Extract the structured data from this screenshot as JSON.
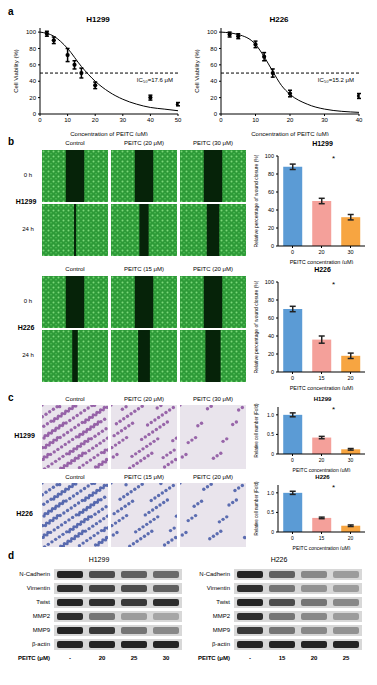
{
  "panel_labels": [
    "a",
    "b",
    "c",
    "d"
  ],
  "chart_data": [
    {
      "type": "scatter",
      "title": "H1299",
      "x_label": "Concentration of PEITC (μM)",
      "y_label": "Cell Viability (%)",
      "annotation": "IC₅₀=17.6 μM",
      "x": [
        2.5,
        5,
        10,
        12.5,
        15,
        20,
        40,
        50
      ],
      "values": [
        98,
        90,
        72,
        60,
        50,
        35,
        20,
        12
      ],
      "errors": [
        3,
        4,
        8,
        5,
        6,
        4,
        3,
        2
      ],
      "fit": {
        "type": "line",
        "x": [
          0,
          5,
          10,
          15,
          20,
          25,
          30,
          35,
          40,
          45,
          50
        ],
        "values": [
          100,
          95,
          80,
          58,
          40,
          27,
          18,
          12,
          8,
          6,
          4
        ]
      },
      "threshold": 50,
      "xlim": [
        0,
        50
      ],
      "xticks": [
        0,
        10,
        20,
        30,
        40,
        50
      ],
      "ylim": [
        0,
        105
      ],
      "yticks": [
        0,
        20,
        40,
        60,
        80,
        100
      ],
      "color": "#000000",
      "marker": "circle"
    },
    {
      "type": "scatter",
      "title": "H226",
      "x_label": "Concentration of PEITC (μM)",
      "y_label": "Cell Viability (%)",
      "annotation": "IC₅₀=15.2 μM",
      "x": [
        2.5,
        5,
        10,
        12.5,
        15,
        20,
        40
      ],
      "values": [
        97,
        95,
        85,
        70,
        50,
        25,
        22
      ],
      "errors": [
        3,
        3,
        4,
        5,
        5,
        4,
        3
      ],
      "fit": {
        "type": "line",
        "x": [
          0,
          5,
          10,
          12.5,
          15,
          17.5,
          20,
          25,
          30,
          40
        ],
        "values": [
          100,
          97,
          85,
          70,
          52,
          35,
          24,
          12,
          6,
          2
        ]
      },
      "threshold": 50,
      "xlim": [
        0,
        40
      ],
      "xticks": [
        0,
        10,
        20,
        30,
        40
      ],
      "ylim": [
        0,
        105
      ],
      "yticks": [
        0,
        20,
        40,
        60,
        80,
        100
      ],
      "color": "#000000",
      "marker": "circle"
    },
    {
      "type": "bar",
      "title": "H1299",
      "x_label": "PEITC concentration (μM)",
      "y_label": "Relative percentage of wound closure (%)",
      "annotation": "*",
      "categories": [
        "0",
        "20",
        "30"
      ],
      "values": [
        88,
        50,
        32
      ],
      "errors": [
        3,
        3,
        3
      ],
      "colors": [
        "#5b9bd5",
        "#f4a09a",
        "#f7a541"
      ],
      "ylim": [
        0,
        100
      ],
      "yticks": [
        0,
        20,
        40,
        60,
        80,
        100
      ]
    },
    {
      "type": "bar",
      "title": "H226",
      "x_label": "PEITC concentration (μM)",
      "y_label": "Relative percentage of wound closure (%)",
      "annotation": "*",
      "categories": [
        "0",
        "15",
        "20"
      ],
      "values": [
        70,
        36,
        18
      ],
      "errors": [
        3,
        4,
        3
      ],
      "colors": [
        "#5b9bd5",
        "#f4a09a",
        "#f7a541"
      ],
      "ylim": [
        0,
        100
      ],
      "yticks": [
        0,
        20,
        40,
        60,
        80,
        100
      ]
    },
    {
      "type": "bar",
      "title": "H1299",
      "x_label": "PEITC concentration (μM)",
      "y_label": "Relative cell number (Fold)",
      "annotation": "*",
      "categories": [
        "0",
        "20",
        "30"
      ],
      "values": [
        1.0,
        0.42,
        0.12
      ],
      "errors": [
        0.05,
        0.03,
        0.02
      ],
      "colors": [
        "#5b9bd5",
        "#f4a09a",
        "#f7a541"
      ],
      "ylim": [
        0,
        1.2
      ],
      "yticks": [
        0,
        0.5,
        {
          "value": 1,
          "label": "1.0"
        }
      ]
    },
    {
      "type": "bar",
      "title": "H226",
      "x_label": "PEITC concentration (μM)",
      "y_label": "Relative cell number (Fold)",
      "annotation": "*",
      "categories": [
        "0",
        "15",
        "20"
      ],
      "values": [
        1.0,
        0.36,
        0.16
      ],
      "errors": [
        0.04,
        0.02,
        0.02
      ],
      "colors": [
        "#5b9bd5",
        "#f4a09a",
        "#f7a541"
      ],
      "ylim": [
        0,
        1.2
      ],
      "yticks": [
        0,
        0.5,
        {
          "value": 1,
          "label": "1.0"
        }
      ]
    }
  ],
  "wound_healing": [
    {
      "cell_line": "H1299",
      "columns": [
        "Control",
        "PEITC (20 μM)",
        "PEITC (30 μM)"
      ],
      "rows": [
        "0 h",
        "24 h"
      ]
    },
    {
      "cell_line": "H226",
      "columns": [
        "Control",
        "PEITC (15 μM)",
        "PEITC (20 μM)"
      ],
      "rows": [
        "0 h",
        "24 h"
      ]
    }
  ],
  "transwell": [
    {
      "cell_line": "H1299",
      "columns": [
        "Control",
        "PEITC (20 μM)",
        "PEITC (30 μM)"
      ]
    },
    {
      "cell_line": "H226",
      "columns": [
        "Control",
        "PEITC (15 μM)",
        "PEITC (20 μM)"
      ]
    }
  ],
  "western_blots": [
    {
      "cell_line": "H1299",
      "lane_label": "PEITC (μM)",
      "lanes": [
        "-",
        "20",
        "25",
        "30"
      ],
      "proteins": [
        "N-Cadherin",
        "Vimentin",
        "Twist",
        "MMP2",
        "MMP9",
        "β-actin"
      ],
      "intensity": [
        [
          0.9,
          0.7,
          0.6,
          0.55
        ],
        [
          0.85,
          0.75,
          0.7,
          0.6
        ],
        [
          0.9,
          0.85,
          0.8,
          0.85
        ],
        [
          0.85,
          0.5,
          0.3,
          0.25
        ],
        [
          0.9,
          0.8,
          0.5,
          0.4
        ],
        [
          0.9,
          0.9,
          0.9,
          0.9
        ]
      ]
    },
    {
      "cell_line": "H226",
      "lane_label": "PEITC (μM)",
      "lanes": [
        "-",
        "15",
        "20",
        "25"
      ],
      "proteins": [
        "N-Cadherin",
        "Vimentin",
        "Twist",
        "MMP2",
        "MMP9",
        "β-actin"
      ],
      "intensity": [
        [
          0.9,
          0.6,
          0.4,
          0.3
        ],
        [
          0.85,
          0.5,
          0.35,
          0.3
        ],
        [
          0.9,
          0.7,
          0.5,
          0.4
        ],
        [
          0.85,
          0.5,
          0.4,
          0.3
        ],
        [
          0.8,
          0.5,
          0.4,
          0.35
        ],
        [
          0.9,
          0.9,
          0.9,
          0.9
        ]
      ]
    }
  ]
}
